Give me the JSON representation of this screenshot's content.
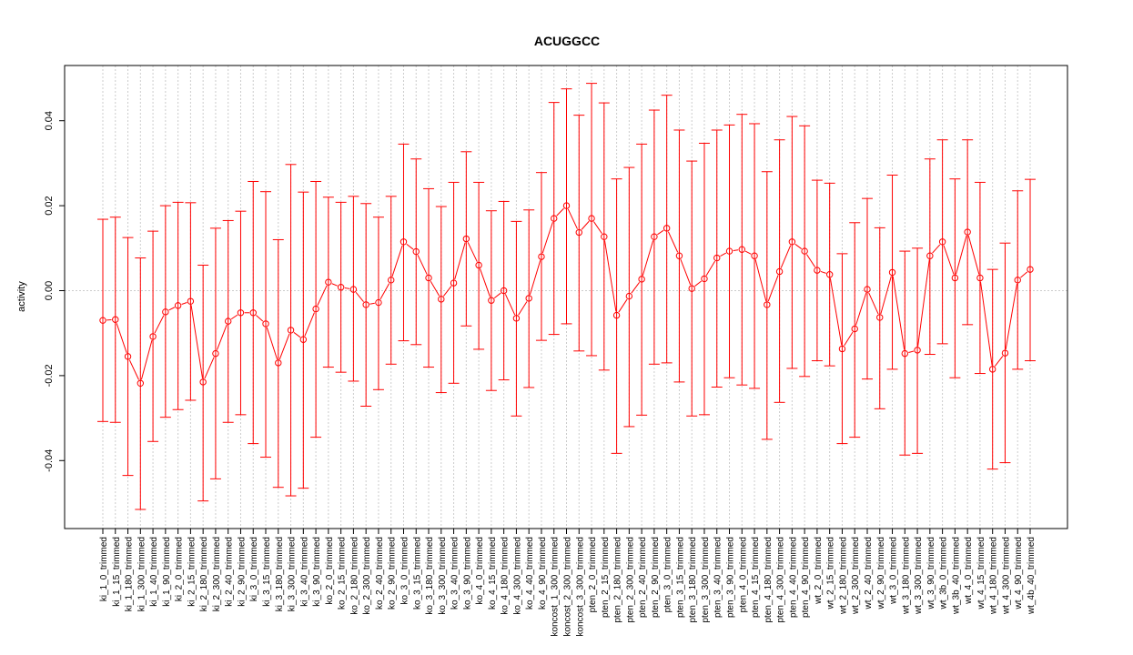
{
  "chart_data": {
    "type": "scatter",
    "title": "ACUGGCC",
    "xlabel": "",
    "ylabel": "activity",
    "ylim": [
      -0.056,
      0.053
    ],
    "yticks": [
      -0.04,
      -0.02,
      0.0,
      0.02,
      0.04
    ],
    "ytick_labels": [
      "-0.04",
      "-0.02",
      "0.00",
      "0.02",
      "0.04"
    ],
    "grid": true,
    "color": "#ff0000",
    "grid_color": "#cccccc",
    "categories": [
      "ki_1_0_trimmed",
      "ki_1_15_trimmed",
      "ki_1_180_trimmed",
      "ki_1_300_trimmed",
      "ki_1_40_trimmed",
      "ki_1_90_trimmed",
      "ki_2_0_trimmed",
      "ki_2_15_trimmed",
      "ki_2_180_trimmed",
      "ki_2_300_trimmed",
      "ki_2_40_trimmed",
      "ki_2_90_trimmed",
      "ki_3_0_trimmed",
      "ki_3_15_trimmed",
      "ki_3_180_trimmed",
      "ki_3_300_trimmed",
      "ki_3_40_trimmed",
      "ki_3_90_trimmed",
      "ko_2_0_trimmed",
      "ko_2_15_trimmed",
      "ko_2_180_trimmed",
      "ko_2_300_trimmed",
      "ko_2_40_trimmed",
      "ko_2_90_trimmed",
      "ko_3_0_trimmed",
      "ko_3_15_trimmed",
      "ko_3_180_trimmed",
      "ko_3_300_trimmed",
      "ko_3_40_trimmed",
      "ko_3_90_trimmed",
      "ko_4_0_trimmed",
      "ko_4_15_trimmed",
      "ko_4_180_trimmed",
      "ko_4_300_trimmed",
      "ko_4_40_trimmed",
      "ko_4_90_trimmed",
      "koncost_1_300_trimmed",
      "koncost_2_300_trimmed",
      "koncost_3_300_trimmed",
      "pten_2_0_trimmed",
      "pten_2_15_trimmed",
      "pten_2_180_trimmed",
      "pten_2_300_trimmed",
      "pten_2_40_trimmed",
      "pten_2_90_trimmed",
      "pten_3_0_trimmed",
      "pten_3_15_trimmed",
      "pten_3_180_trimmed",
      "pten_3_300_trimmed",
      "pten_3_40_trimmed",
      "pten_3_90_trimmed",
      "pten_4_0_trimmed",
      "pten_4_15_trimmed",
      "pten_4_180_trimmed",
      "pten_4_300_trimmed",
      "pten_4_40_trimmed",
      "pten_4_90_trimmed",
      "wt_2_0_trimmed",
      "wt_2_15_trimmed",
      "wt_2_180_trimmed",
      "wt_2_300_trimmed",
      "wt_2_40_trimmed",
      "wt_2_90_trimmed",
      "wt_3_0_trimmed",
      "wt_3_180_trimmed",
      "wt_3_300_trimmed",
      "wt_3_90_trimmed",
      "wt_3b_0_trimmed",
      "wt_3b_40_trimmed",
      "wt_4_0_trimmed",
      "wt_4_15_trimmed",
      "wt_4_180_trimmed",
      "wt_4_300_trimmed",
      "wt_4_90_trimmed",
      "wt_4b_40_trimmed"
    ],
    "values": [
      -0.007,
      -0.0068,
      -0.0155,
      -0.0218,
      -0.0108,
      -0.005,
      -0.0035,
      -0.0025,
      -0.0215,
      -0.0148,
      -0.0072,
      -0.0052,
      -0.0052,
      -0.0078,
      -0.017,
      -0.0093,
      -0.0115,
      -0.0043,
      0.002,
      0.0008,
      0.0003,
      -0.0033,
      -0.0028,
      0.0025,
      0.0115,
      0.0092,
      0.003,
      -0.002,
      0.0018,
      0.0122,
      0.006,
      -0.0023,
      0.0,
      -0.0065,
      -0.0018,
      0.008,
      0.017,
      0.02,
      0.0137,
      0.017,
      0.0127,
      -0.0058,
      -0.0013,
      0.0027,
      0.0127,
      0.0147,
      0.0082,
      0.0005,
      0.0028,
      0.0077,
      0.0093,
      0.0097,
      0.0082,
      -0.0033,
      0.0045,
      0.0115,
      0.0093,
      0.0048,
      0.0038,
      -0.0137,
      -0.009,
      0.0003,
      -0.0063,
      0.0043,
      -0.0148,
      -0.014,
      0.0082,
      0.0115,
      0.003,
      0.0138,
      0.003,
      -0.0185,
      -0.0147,
      0.0025,
      0.005
    ],
    "upper": [
      0.0168,
      0.0173,
      0.0125,
      0.0077,
      0.014,
      0.02,
      0.0208,
      0.0207,
      0.006,
      0.0147,
      0.0165,
      0.0187,
      0.0257,
      0.0233,
      0.012,
      0.0297,
      0.0232,
      0.0257,
      0.022,
      0.0208,
      0.0222,
      0.0205,
      0.0173,
      0.0222,
      0.0345,
      0.031,
      0.024,
      0.0198,
      0.0255,
      0.0327,
      0.0255,
      0.0188,
      0.021,
      0.0163,
      0.019,
      0.0278,
      0.0443,
      0.0475,
      0.0413,
      0.0488,
      0.0442,
      0.0263,
      0.029,
      0.0345,
      0.0425,
      0.046,
      0.0378,
      0.0305,
      0.0347,
      0.0378,
      0.039,
      0.0415,
      0.0393,
      0.028,
      0.0355,
      0.041,
      0.0388,
      0.026,
      0.0253,
      0.0087,
      0.016,
      0.0217,
      0.0148,
      0.0272,
      0.0093,
      0.01,
      0.031,
      0.0355,
      0.0263,
      0.0355,
      0.0255,
      0.005,
      0.0112,
      0.0235,
      0.0262
    ],
    "lower": [
      -0.0308,
      -0.031,
      -0.0435,
      -0.0515,
      -0.0355,
      -0.0298,
      -0.028,
      -0.0258,
      -0.0495,
      -0.0443,
      -0.031,
      -0.0292,
      -0.036,
      -0.0392,
      -0.0463,
      -0.0483,
      -0.0465,
      -0.0345,
      -0.018,
      -0.0192,
      -0.0213,
      -0.0272,
      -0.0233,
      -0.0173,
      -0.0118,
      -0.0127,
      -0.018,
      -0.024,
      -0.0218,
      -0.0083,
      -0.0138,
      -0.0235,
      -0.021,
      -0.0295,
      -0.0228,
      -0.0117,
      -0.0103,
      -0.0078,
      -0.0142,
      -0.0153,
      -0.0187,
      -0.0383,
      -0.032,
      -0.0293,
      -0.0173,
      -0.017,
      -0.0215,
      -0.0295,
      -0.0292,
      -0.0227,
      -0.0205,
      -0.0222,
      -0.023,
      -0.035,
      -0.0263,
      -0.0183,
      -0.0202,
      -0.0165,
      -0.0177,
      -0.036,
      -0.0345,
      -0.0208,
      -0.0278,
      -0.0185,
      -0.0387,
      -0.0383,
      -0.015,
      -0.0125,
      -0.0205,
      -0.008,
      -0.0195,
      -0.042,
      -0.0405,
      -0.0185,
      -0.0165
    ]
  }
}
